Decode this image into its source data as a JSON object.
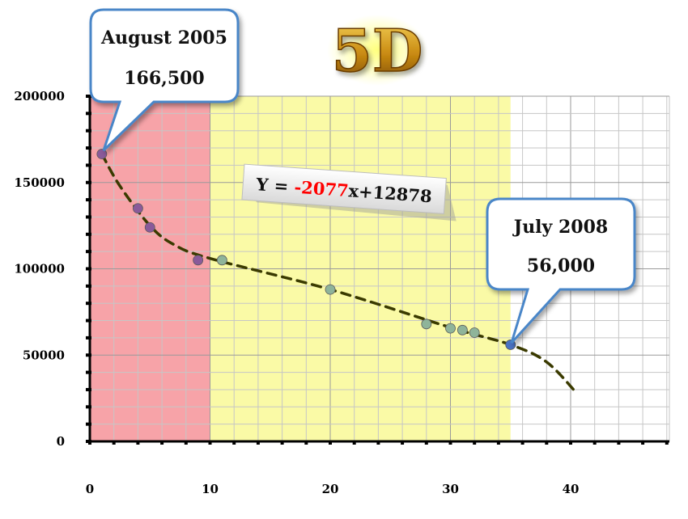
{
  "chart_data": {
    "type": "scatter",
    "title": "5D",
    "xlabel": "",
    "ylabel": "",
    "xlim": [
      0,
      48
    ],
    "ylim": [
      0,
      200000
    ],
    "x_ticks": [
      0,
      10,
      20,
      30,
      40
    ],
    "y_ticks": [
      0,
      50000,
      100000,
      150000,
      200000
    ],
    "x_tick_labels": [
      "0",
      "10",
      "20",
      "30",
      "40"
    ],
    "y_tick_labels": [
      "0",
      "50000",
      "100000",
      "150000",
      "200000"
    ],
    "grid": true,
    "regions": [
      {
        "from": 0,
        "to": 10,
        "color": "#f7a3a8"
      },
      {
        "from": 10,
        "to": 35,
        "color": "#fafaa6"
      }
    ],
    "series": [
      {
        "points": [
          {
            "x": 1,
            "y": 166500,
            "color": "#8a5a9a"
          },
          {
            "x": 4,
            "y": 135000,
            "color": "#8a5a9a"
          },
          {
            "x": 5,
            "y": 124000,
            "color": "#8a5a9a"
          },
          {
            "x": 9,
            "y": 105000,
            "color": "#8a5a9a"
          },
          {
            "x": 11,
            "y": 105000,
            "color": "#8fb49a"
          },
          {
            "x": 20,
            "y": 88000,
            "color": "#8fb49a"
          },
          {
            "x": 28,
            "y": 68000,
            "color": "#8fb49a"
          },
          {
            "x": 30,
            "y": 65500,
            "color": "#8fb49a"
          },
          {
            "x": 31,
            "y": 64500,
            "color": "#8fb49a"
          },
          {
            "x": 32,
            "y": 63000,
            "color": "#8fb49a"
          },
          {
            "x": 35,
            "y": 56000,
            "color": "#4a72c4"
          }
        ]
      }
    ],
    "trendline": {
      "points": [
        {
          "x": 1,
          "y": 166500
        },
        {
          "x": 2.5,
          "y": 148000
        },
        {
          "x": 5,
          "y": 125000
        },
        {
          "x": 7,
          "y": 114000
        },
        {
          "x": 10,
          "y": 106000
        },
        {
          "x": 20,
          "y": 88000
        },
        {
          "x": 30,
          "y": 66000
        },
        {
          "x": 35,
          "y": 56000
        },
        {
          "x": 38,
          "y": 46000
        },
        {
          "x": 40.5,
          "y": 28000
        }
      ],
      "color": "#3a3a00"
    },
    "annotations": {
      "start": {
        "line1": "August 2005",
        "line2": "166,500"
      },
      "end": {
        "line1": "July 2008",
        "line2": "56,000"
      },
      "equation": {
        "prefix": "Y = ",
        "slope": "-2077",
        "suffix": "x+12878",
        "slope_color": "#ff0000"
      }
    }
  }
}
